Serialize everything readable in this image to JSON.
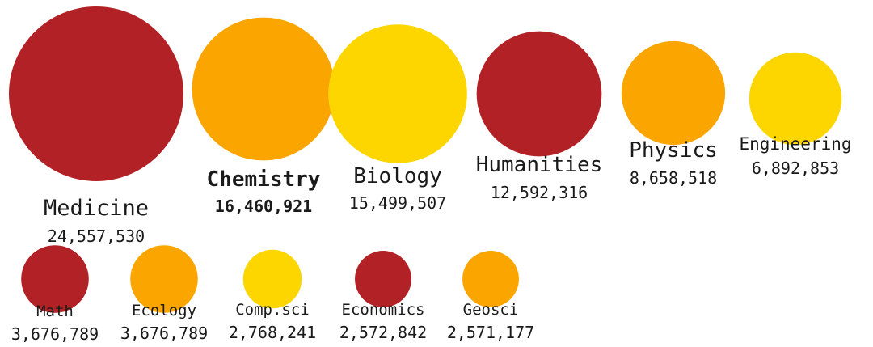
{
  "chart_data": {
    "type": "bubble",
    "title": "",
    "encoding": "circle area proportional to value",
    "colors": {
      "red": "#b22125",
      "orange": "#fba500",
      "yellow": "#fdd600"
    },
    "bubbles": [
      {
        "name": "Medicine",
        "value": 24557530,
        "value_label": "24,557,530",
        "color": "#b22125",
        "bold": false
      },
      {
        "name": "Chemistry",
        "value": 16460921,
        "value_label": "16,460,921",
        "color": "#fba500",
        "bold": true
      },
      {
        "name": "Biology",
        "value": 15499507,
        "value_label": "15,499,507",
        "color": "#fdd600",
        "bold": false
      },
      {
        "name": "Humanities",
        "value": 12592316,
        "value_label": "12,592,316",
        "color": "#b22125",
        "bold": false
      },
      {
        "name": "Physics",
        "value": 8658518,
        "value_label": "8,658,518",
        "color": "#fba500",
        "bold": false
      },
      {
        "name": "Engineering",
        "value": 6892853,
        "value_label": "6,892,853",
        "color": "#fdd600",
        "bold": false
      },
      {
        "name": "Math",
        "value": 3676789,
        "value_label": "3,676,789",
        "color": "#b22125",
        "bold": false
      },
      {
        "name": "Ecology",
        "value": 3676789,
        "value_label": "3,676,789",
        "color": "#fba500",
        "bold": false
      },
      {
        "name": "Comp.sci",
        "value": 2768241,
        "value_label": "2,768,241",
        "color": "#fdd600",
        "bold": false
      },
      {
        "name": "Economics",
        "value": 2572842,
        "value_label": "2,572,842",
        "color": "#b22125",
        "bold": false
      },
      {
        "name": "Geosci",
        "value": 2571177,
        "value_label": "2,571,177",
        "color": "#fba500",
        "bold": false
      }
    ]
  }
}
